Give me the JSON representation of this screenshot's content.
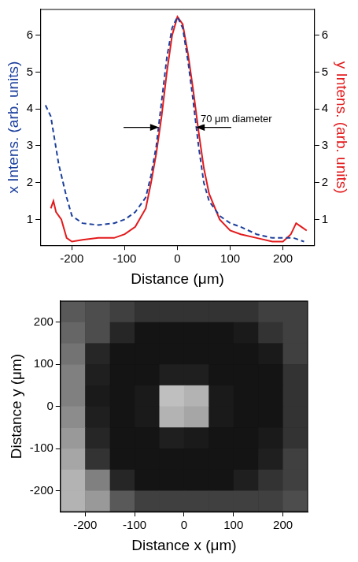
{
  "chart_data": [
    {
      "type": "line",
      "x_label": "Distance (μm)",
      "y_label": "x Intens. (arb. units)",
      "y2_label": "y Intens. (arb. units)",
      "xlim": [
        -260,
        260
      ],
      "xticks": [
        -200,
        -100,
        0,
        100,
        200
      ],
      "ylim": [
        0.3,
        6.7
      ],
      "yticks": [
        1,
        2,
        3,
        4,
        5,
        6
      ],
      "y2lim": [
        0.3,
        6.7
      ],
      "y2ticks": [
        1,
        2,
        3,
        4,
        5,
        6
      ],
      "grid": false,
      "series": [
        {
          "color": "#1c3f9c",
          "line_style": "dashed",
          "x": [
            -250,
            -240,
            -225,
            -210,
            -200,
            -180,
            -150,
            -120,
            -100,
            -80,
            -60,
            -50,
            -40,
            -30,
            -20,
            -10,
            0,
            10,
            20,
            30,
            40,
            50,
            60,
            80,
            100,
            120,
            150,
            180,
            200,
            220,
            240
          ],
          "values": [
            4.1,
            3.8,
            2.5,
            1.6,
            1.1,
            0.9,
            0.85,
            0.9,
            1.0,
            1.2,
            1.6,
            2.2,
            3.0,
            4.2,
            5.4,
            6.2,
            6.5,
            6.2,
            5.3,
            4.2,
            3.0,
            2.0,
            1.5,
            1.1,
            0.9,
            0.8,
            0.6,
            0.5,
            0.5,
            0.5,
            0.4
          ]
        },
        {
          "color": "#e31a1c",
          "line_style": "solid",
          "axis": "y2",
          "x": [
            -240,
            -235,
            -230,
            -220,
            -210,
            -200,
            -180,
            -150,
            -120,
            -100,
            -80,
            -60,
            -50,
            -40,
            -30,
            -20,
            -10,
            0,
            10,
            20,
            30,
            40,
            50,
            60,
            80,
            100,
            120,
            150,
            180,
            200,
            215,
            225,
            235,
            245
          ],
          "values": [
            1.3,
            1.5,
            1.2,
            1.0,
            0.5,
            0.4,
            0.45,
            0.5,
            0.5,
            0.6,
            0.8,
            1.3,
            2.0,
            2.8,
            3.8,
            5.0,
            6.0,
            6.5,
            6.3,
            5.5,
            4.5,
            3.4,
            2.4,
            1.7,
            1.0,
            0.7,
            0.6,
            0.5,
            0.4,
            0.4,
            0.6,
            0.9,
            0.8,
            0.7
          ]
        }
      ],
      "annotations": [
        {
          "text": "70 μm diameter",
          "x": [
            -35,
            35
          ],
          "y": 3.5
        }
      ]
    },
    {
      "type": "heatmap",
      "x_label": "Distance x (μm)",
      "y_label": "Distance y (μm)",
      "xlim": [
        -250,
        250
      ],
      "xticks": [
        -200,
        -100,
        0,
        100,
        200
      ],
      "ylim": [
        -250,
        250
      ],
      "yticks": [
        -200,
        -100,
        0,
        100,
        200
      ],
      "grid": false,
      "x": [
        -225,
        -175,
        -125,
        -75,
        -25,
        25,
        75,
        125,
        175,
        225
      ],
      "y": [
        225,
        175,
        125,
        75,
        25,
        -25,
        -75,
        -125,
        -175,
        -225
      ],
      "cells": [
        [
          0.35,
          0.3,
          0.25,
          0.2,
          0.2,
          0.2,
          0.2,
          0.2,
          0.25,
          0.25
        ],
        [
          0.4,
          0.3,
          0.15,
          0.08,
          0.08,
          0.08,
          0.08,
          0.1,
          0.2,
          0.25
        ],
        [
          0.45,
          0.15,
          0.08,
          0.08,
          0.08,
          0.08,
          0.08,
          0.08,
          0.1,
          0.25
        ],
        [
          0.5,
          0.12,
          0.08,
          0.08,
          0.12,
          0.12,
          0.08,
          0.08,
          0.08,
          0.2
        ],
        [
          0.5,
          0.1,
          0.08,
          0.1,
          0.75,
          0.7,
          0.1,
          0.08,
          0.08,
          0.2
        ],
        [
          0.55,
          0.12,
          0.08,
          0.1,
          0.7,
          0.65,
          0.1,
          0.08,
          0.08,
          0.2
        ],
        [
          0.6,
          0.15,
          0.08,
          0.08,
          0.12,
          0.1,
          0.08,
          0.08,
          0.1,
          0.2
        ],
        [
          0.65,
          0.2,
          0.08,
          0.08,
          0.08,
          0.08,
          0.08,
          0.08,
          0.12,
          0.25
        ],
        [
          0.7,
          0.5,
          0.15,
          0.08,
          0.08,
          0.08,
          0.08,
          0.12,
          0.2,
          0.25
        ],
        [
          0.7,
          0.6,
          0.35,
          0.25,
          0.25,
          0.25,
          0.25,
          0.25,
          0.25,
          0.3
        ]
      ]
    }
  ]
}
